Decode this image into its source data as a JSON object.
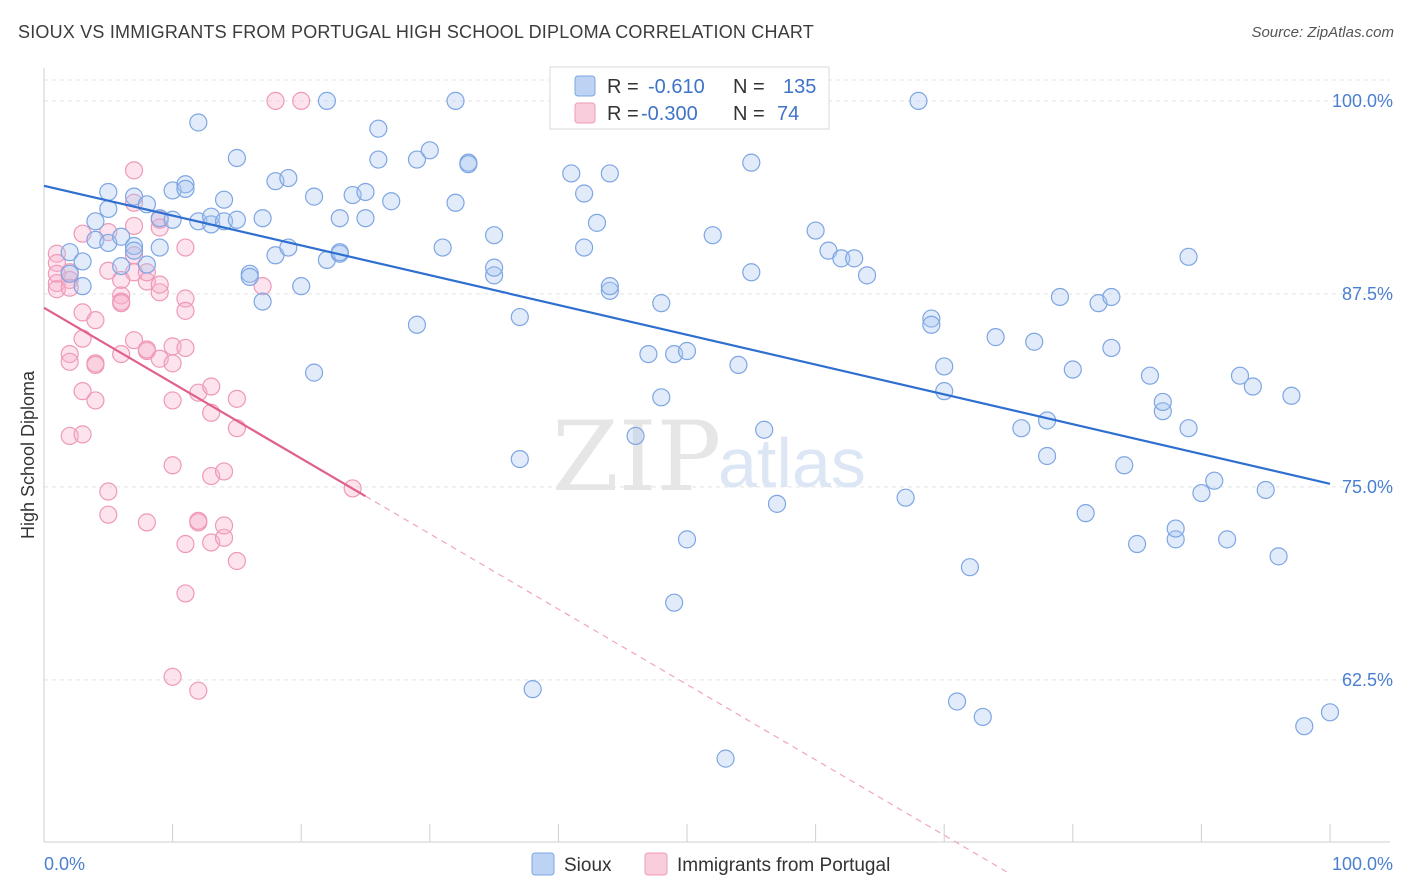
{
  "title": "SIOUX VS IMMIGRANTS FROM PORTUGAL HIGH SCHOOL DIPLOMA CORRELATION CHART",
  "source": "Source: ZipAtlas.com",
  "watermark": {
    "zip": "ZIP",
    "atlas": "atlas"
  },
  "legend": {
    "rows": [
      {
        "r_label": "R =",
        "r_value": "-0.610",
        "n_label": "N =",
        "n_value": "135"
      },
      {
        "r_label": "R =",
        "r_value": "-0.300",
        "n_label": "N =",
        "n_value": "74"
      }
    ]
  },
  "chart_data": {
    "type": "scatter",
    "title": "",
    "xlabel": "",
    "ylabel": "High School Diploma",
    "xlim": [
      0,
      100
    ],
    "ylim": [
      52,
      102
    ],
    "x_tick_labels": [
      "0.0%",
      "100.0%"
    ],
    "y_ticks": [
      62.5,
      75.0,
      87.5,
      100.0
    ],
    "y_tick_labels": [
      "62.5%",
      "75.0%",
      "87.5%",
      "100.0%"
    ],
    "grid": true,
    "legend_position": "bottom",
    "colors": {
      "sioux": "#5b8fd9",
      "portugal": "#ee8aab",
      "sioux_line": "#2f6fcf",
      "portugal_line": "#e0608a"
    },
    "series": [
      {
        "name": "Sioux",
        "r": -0.61,
        "n": 135,
        "trend": {
          "x": [
            0,
            100
          ],
          "y": [
            94.5,
            75.2
          ]
        },
        "points": [
          [
            2,
            90.2
          ],
          [
            3,
            89.6
          ],
          [
            2,
            88.8
          ],
          [
            3,
            88.0
          ],
          [
            4,
            91.0
          ],
          [
            4,
            92.2
          ],
          [
            5,
            90.8
          ],
          [
            5,
            93.0
          ],
          [
            6,
            91.2
          ],
          [
            5,
            94.1
          ],
          [
            6,
            89.3
          ],
          [
            7,
            93.8
          ],
          [
            7,
            90.6
          ],
          [
            7,
            90.3
          ],
          [
            8,
            89.4
          ],
          [
            8,
            93.3
          ],
          [
            9,
            92.4
          ],
          [
            9,
            90.5
          ],
          [
            10,
            92.3
          ],
          [
            10,
            94.2
          ],
          [
            11,
            94.6
          ],
          [
            11,
            94.3
          ],
          [
            12,
            92.2
          ],
          [
            12,
            98.6
          ],
          [
            13,
            92.0
          ],
          [
            13,
            92.5
          ],
          [
            14,
            93.6
          ],
          [
            14,
            92.2
          ],
          [
            15,
            92.3
          ],
          [
            15,
            96.3
          ],
          [
            16,
            88.8
          ],
          [
            16,
            88.6
          ],
          [
            17,
            92.4
          ],
          [
            17,
            87.0
          ],
          [
            18,
            90.0
          ],
          [
            18,
            94.8
          ],
          [
            19,
            95.0
          ],
          [
            19,
            90.5
          ],
          [
            20,
            88.0
          ],
          [
            21,
            93.8
          ],
          [
            21,
            82.4
          ],
          [
            22,
            89.7
          ],
          [
            22,
            100.0
          ],
          [
            23,
            92.4
          ],
          [
            23,
            90.1
          ],
          [
            23,
            90.2
          ],
          [
            24,
            93.9
          ],
          [
            25,
            92.4
          ],
          [
            25,
            94.1
          ],
          [
            26,
            96.2
          ],
          [
            26,
            98.2
          ],
          [
            27,
            93.5
          ],
          [
            29,
            85.5
          ],
          [
            29,
            96.2
          ],
          [
            30,
            96.8
          ],
          [
            31,
            90.5
          ],
          [
            32,
            93.4
          ],
          [
            32,
            100.0
          ],
          [
            33,
            96.0
          ],
          [
            33,
            95.9
          ],
          [
            35,
            91.3
          ],
          [
            35,
            88.7
          ],
          [
            35,
            89.2
          ],
          [
            37,
            76.8
          ],
          [
            37,
            86.0
          ],
          [
            38,
            61.9
          ],
          [
            41,
            95.3
          ],
          [
            42,
            94.0
          ],
          [
            42,
            90.5
          ],
          [
            43,
            92.1
          ],
          [
            44,
            95.3
          ],
          [
            44,
            87.7
          ],
          [
            44,
            88.0
          ],
          [
            45,
            100.0
          ],
          [
            46,
            78.3
          ],
          [
            47,
            83.6
          ],
          [
            48,
            86.9
          ],
          [
            48,
            80.8
          ],
          [
            49,
            83.6
          ],
          [
            49,
            67.5
          ],
          [
            50,
            83.8
          ],
          [
            50,
            71.6
          ],
          [
            52,
            91.3
          ],
          [
            53,
            57.4
          ],
          [
            54,
            82.9
          ],
          [
            55,
            88.9
          ],
          [
            55,
            96.0
          ],
          [
            56,
            78.7
          ],
          [
            57,
            73.9
          ],
          [
            60,
            91.6
          ],
          [
            61,
            90.3
          ],
          [
            62,
            89.8
          ],
          [
            63,
            89.8
          ],
          [
            64,
            88.7
          ],
          [
            67,
            74.3
          ],
          [
            68,
            100.0
          ],
          [
            69,
            85.9
          ],
          [
            69,
            85.5
          ],
          [
            70,
            81.2
          ],
          [
            70,
            82.8
          ],
          [
            71,
            61.1
          ],
          [
            72,
            69.8
          ],
          [
            73,
            60.1
          ],
          [
            74,
            84.7
          ],
          [
            76,
            78.8
          ],
          [
            77,
            84.4
          ],
          [
            78,
            77.0
          ],
          [
            78,
            79.3
          ],
          [
            79,
            87.3
          ],
          [
            80,
            82.6
          ],
          [
            81,
            73.3
          ],
          [
            82,
            86.9
          ],
          [
            83,
            84.0
          ],
          [
            83,
            87.3
          ],
          [
            84,
            76.4
          ],
          [
            85,
            71.3
          ],
          [
            86,
            82.2
          ],
          [
            87,
            79.9
          ],
          [
            87,
            80.5
          ],
          [
            88,
            71.6
          ],
          [
            88,
            72.3
          ],
          [
            89,
            89.9
          ],
          [
            89,
            78.8
          ],
          [
            90,
            74.6
          ],
          [
            91,
            75.4
          ],
          [
            92,
            71.6
          ],
          [
            93,
            82.2
          ],
          [
            94,
            81.5
          ],
          [
            95,
            74.8
          ],
          [
            96,
            70.5
          ],
          [
            97,
            80.9
          ],
          [
            98,
            59.5
          ],
          [
            100,
            60.4
          ]
        ]
      },
      {
        "name": "Immigrants from Portugal",
        "r": -0.3,
        "n": 74,
        "trend": {
          "x": [
            0,
            25
          ],
          "y": [
            86.6,
            74.4
          ]
        },
        "trend_dashed": {
          "x": [
            25,
            75
          ],
          "y": [
            74.4,
            50.0
          ]
        },
        "points": [
          [
            1,
            90.1
          ],
          [
            1,
            89.5
          ],
          [
            1,
            88.8
          ],
          [
            1,
            88.2
          ],
          [
            1,
            87.8
          ],
          [
            2,
            88.9
          ],
          [
            2,
            88.4
          ],
          [
            2,
            87.9
          ],
          [
            2,
            83.6
          ],
          [
            2,
            83.1
          ],
          [
            2,
            78.3
          ],
          [
            3,
            91.4
          ],
          [
            3,
            86.3
          ],
          [
            3,
            84.6
          ],
          [
            3,
            81.2
          ],
          [
            3,
            78.4
          ],
          [
            4,
            80.6
          ],
          [
            4,
            85.8
          ],
          [
            4,
            83.0
          ],
          [
            4,
            82.9
          ],
          [
            5,
            91.5
          ],
          [
            5,
            89.0
          ],
          [
            5,
            74.7
          ],
          [
            5,
            73.2
          ],
          [
            6,
            88.4
          ],
          [
            6,
            87.4
          ],
          [
            6,
            87.0
          ],
          [
            6,
            86.9
          ],
          [
            6,
            83.6
          ],
          [
            7,
            95.5
          ],
          [
            7,
            93.4
          ],
          [
            7,
            91.9
          ],
          [
            7,
            90.0
          ],
          [
            7,
            88.9
          ],
          [
            7,
            84.5
          ],
          [
            8,
            83.8
          ],
          [
            8,
            83.9
          ],
          [
            8,
            88.3
          ],
          [
            8,
            72.7
          ],
          [
            9,
            92.3
          ],
          [
            9,
            91.8
          ],
          [
            9,
            87.6
          ],
          [
            9,
            83.3
          ],
          [
            9,
            88.1
          ],
          [
            10,
            83.0
          ],
          [
            10,
            62.7
          ],
          [
            10,
            84.1
          ],
          [
            10,
            76.4
          ],
          [
            11,
            90.5
          ],
          [
            11,
            87.2
          ],
          [
            11,
            86.4
          ],
          [
            11,
            71.3
          ],
          [
            11,
            68.1
          ],
          [
            11,
            84.0
          ],
          [
            12,
            72.7
          ],
          [
            12,
            72.8
          ],
          [
            12,
            61.8
          ],
          [
            12,
            81.1
          ],
          [
            13,
            71.4
          ],
          [
            13,
            75.7
          ],
          [
            13,
            79.8
          ],
          [
            13,
            81.5
          ],
          [
            14,
            71.7
          ],
          [
            14,
            76.0
          ],
          [
            14,
            72.5
          ],
          [
            15,
            80.7
          ],
          [
            15,
            78.8
          ],
          [
            15,
            70.2
          ],
          [
            17,
            88.0
          ],
          [
            18,
            100.0
          ],
          [
            20,
            100.0
          ],
          [
            24,
            74.9
          ],
          [
            8,
            88.9
          ],
          [
            10,
            80.6
          ]
        ]
      }
    ]
  },
  "bottom_legend": [
    {
      "label": "Sioux"
    },
    {
      "label": "Immigrants from Portugal"
    }
  ]
}
